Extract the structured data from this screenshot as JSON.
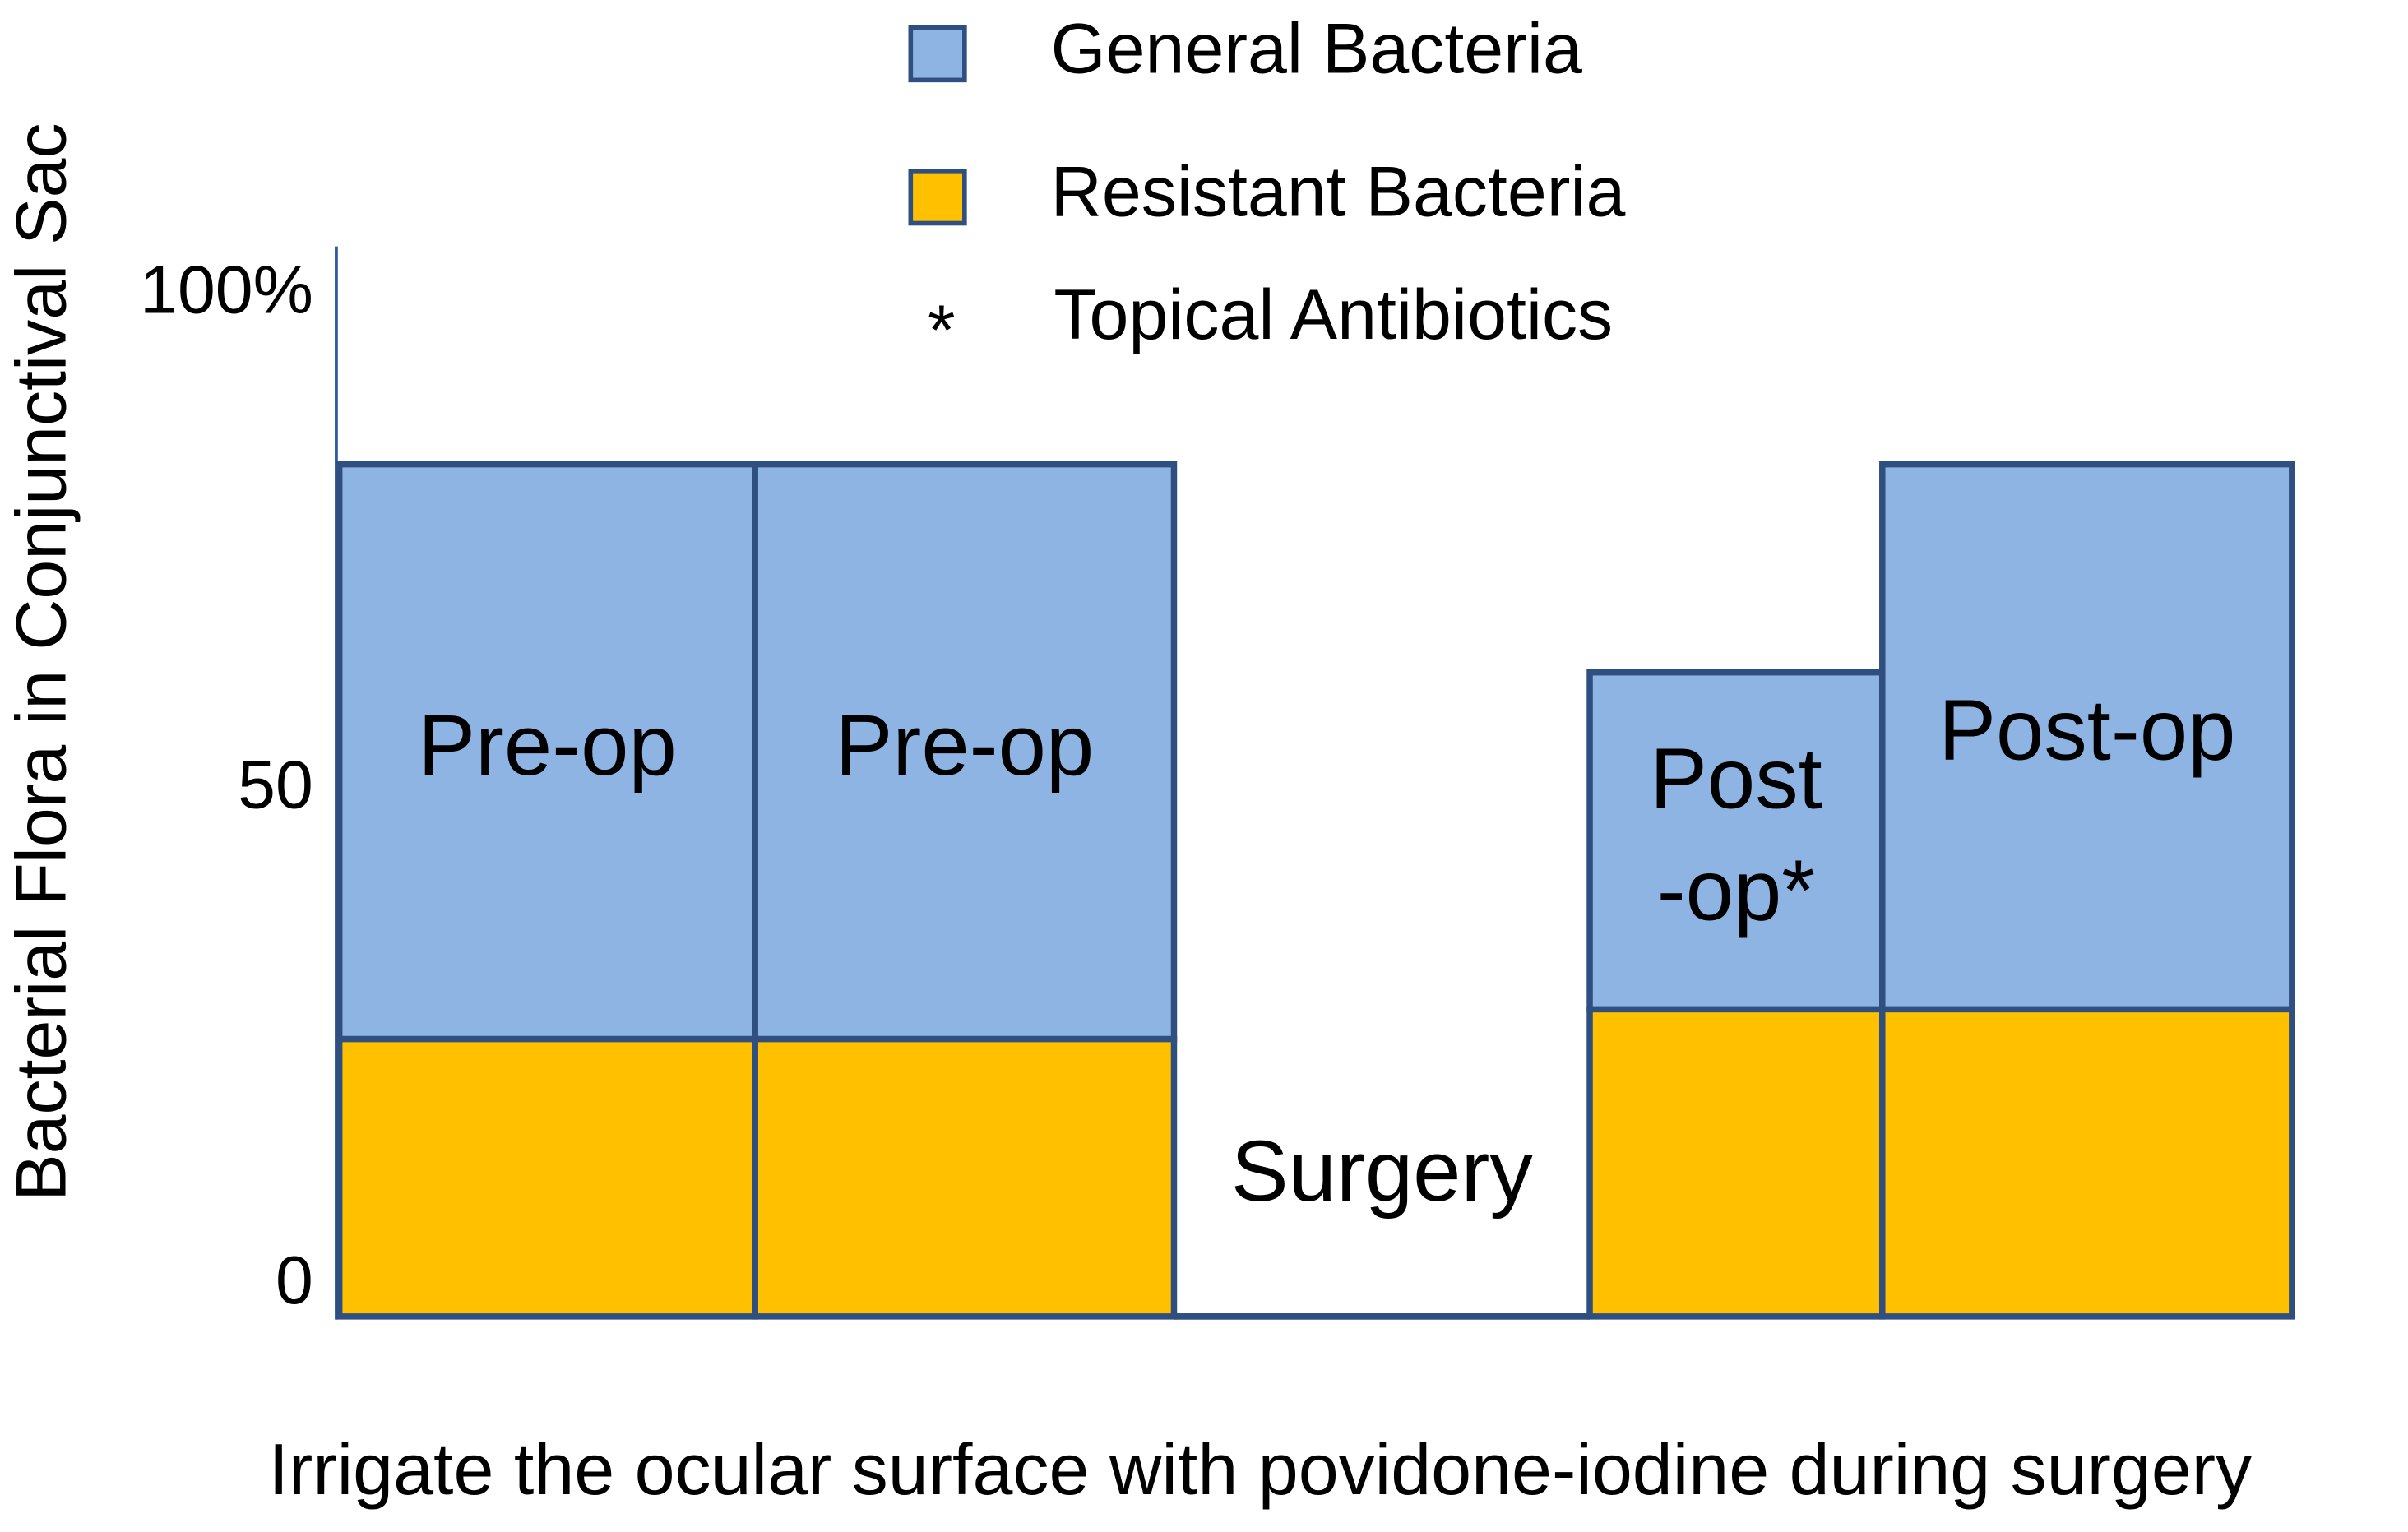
{
  "chart_data": {
    "type": "variable-width-stacked-bar",
    "y_axis_label": "Bacterial Flora in Conjunctival Sac",
    "x_axis_label": "Irrigate the ocular surface with povidone-iodine during surgery",
    "categories": [
      "Pre-op",
      "Pre-op",
      "Surgery",
      "Post\n-op*",
      "Post-op"
    ],
    "series": [
      {
        "name": "General Bacteria",
        "color": "#8EB4E3",
        "values": [
          58,
          58,
          0,
          34,
          55
        ]
      },
      {
        "name": "Resistant Bacteria",
        "color": "#FFC000",
        "values": [
          28,
          28,
          0,
          31,
          31
        ]
      }
    ],
    "legend_note": {
      "symbol": "*",
      "label": "Topical Antibiotics"
    },
    "ylim": [
      0,
      108
    ],
    "yticks": [
      0,
      50,
      {
        "value": 100,
        "label": "100%"
      }
    ],
    "grid": false
  }
}
